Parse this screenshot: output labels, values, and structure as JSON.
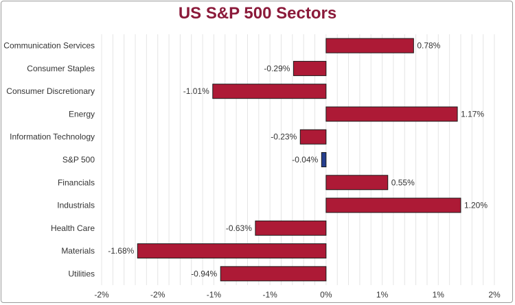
{
  "colors": {
    "title": "#8b1a3a",
    "bar": "#ad1a36",
    "highlight": "#263f8e",
    "grid": "#e4e4e4",
    "text": "#333333"
  },
  "chart_data": {
    "type": "bar",
    "orientation": "horizontal",
    "title": "US S&P 500 Sectors",
    "xlabel": "",
    "ylabel": "",
    "xlim": [
      -2.0,
      1.5
    ],
    "categories": [
      "Communication Services",
      "Consumer Staples",
      "Consumer Discretionary",
      "Energy",
      "Information Technology",
      "S&P 500",
      "Financials",
      "Industrials",
      "Health Care",
      "Materials",
      "Utilities"
    ],
    "values": [
      0.78,
      -0.29,
      -1.01,
      1.17,
      -0.23,
      -0.04,
      0.55,
      1.2,
      -0.63,
      -1.68,
      -0.94
    ],
    "data_labels": [
      "0.78%",
      "-0.29%",
      "-1.01%",
      "1.17%",
      "-0.23%",
      "-0.04%",
      "0.55%",
      "1.20%",
      "-0.63%",
      "-1.68%",
      "-0.94%"
    ],
    "highlight_category": "S&P 500",
    "x_ticks": [
      -2.0,
      -1.5,
      -1.0,
      -0.5,
      0.0,
      0.5,
      1.0,
      1.5
    ],
    "x_tick_labels": [
      "-2%",
      "-2%",
      "-1%",
      "-1%",
      "0%",
      "1%",
      "1%",
      "2%"
    ],
    "grid": true,
    "legend": "none"
  }
}
